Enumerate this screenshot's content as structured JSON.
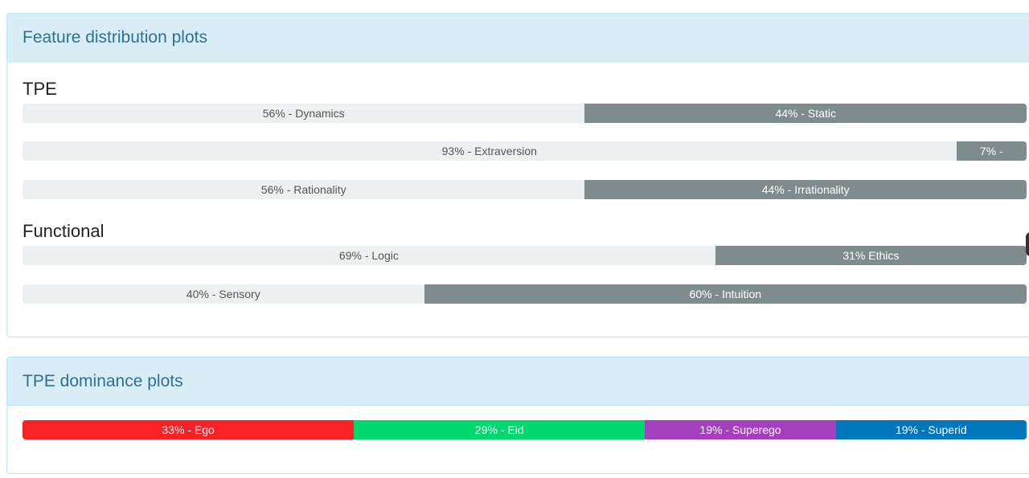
{
  "feature_panel": {
    "title": "Feature distribution plots",
    "sections": [
      {
        "title": "TPE",
        "bars": [
          {
            "left": {
              "label": "56% - Dynamics",
              "pct": 56,
              "color": "#ecf0f1"
            },
            "right": {
              "label": "44% - Static",
              "pct": 44,
              "color": "#7f8c8d"
            }
          },
          {
            "left": {
              "label": "93% - Extraversion",
              "pct": 93,
              "color": "#ecf0f1"
            },
            "right": {
              "label": "7% -",
              "pct": 7,
              "color": "#7f8c8d"
            }
          },
          {
            "left": {
              "label": "56% - Rationality",
              "pct": 56,
              "color": "#ecf0f1"
            },
            "right": {
              "label": "44% - Irrationality",
              "pct": 44,
              "color": "#7f8c8d"
            }
          }
        ]
      },
      {
        "title": "Functional",
        "bars": [
          {
            "left": {
              "label": "69% - Logic",
              "pct": 69,
              "color": "#ecf0f1"
            },
            "right": {
              "label": "31% Ethics",
              "pct": 31,
              "color": "#7f8c8d"
            }
          },
          {
            "left": {
              "label": "40% - Sensory",
              "pct": 40,
              "color": "#ecf0f1"
            },
            "right": {
              "label": "60% - Intuition",
              "pct": 60,
              "color": "#7f8c8d"
            }
          }
        ]
      }
    ]
  },
  "dominance_panel": {
    "title": "TPE dominance plots",
    "segments": [
      {
        "label": "33% - Ego",
        "pct": 33,
        "color": "#f82126"
      },
      {
        "label": "29% - Eid",
        "pct": 29,
        "color": "#00d96d"
      },
      {
        "label": "19% - Superego",
        "pct": 19,
        "color": "#a63fbd"
      },
      {
        "label": "19% - Superid",
        "pct": 19,
        "color": "#0076bd"
      }
    ]
  }
}
